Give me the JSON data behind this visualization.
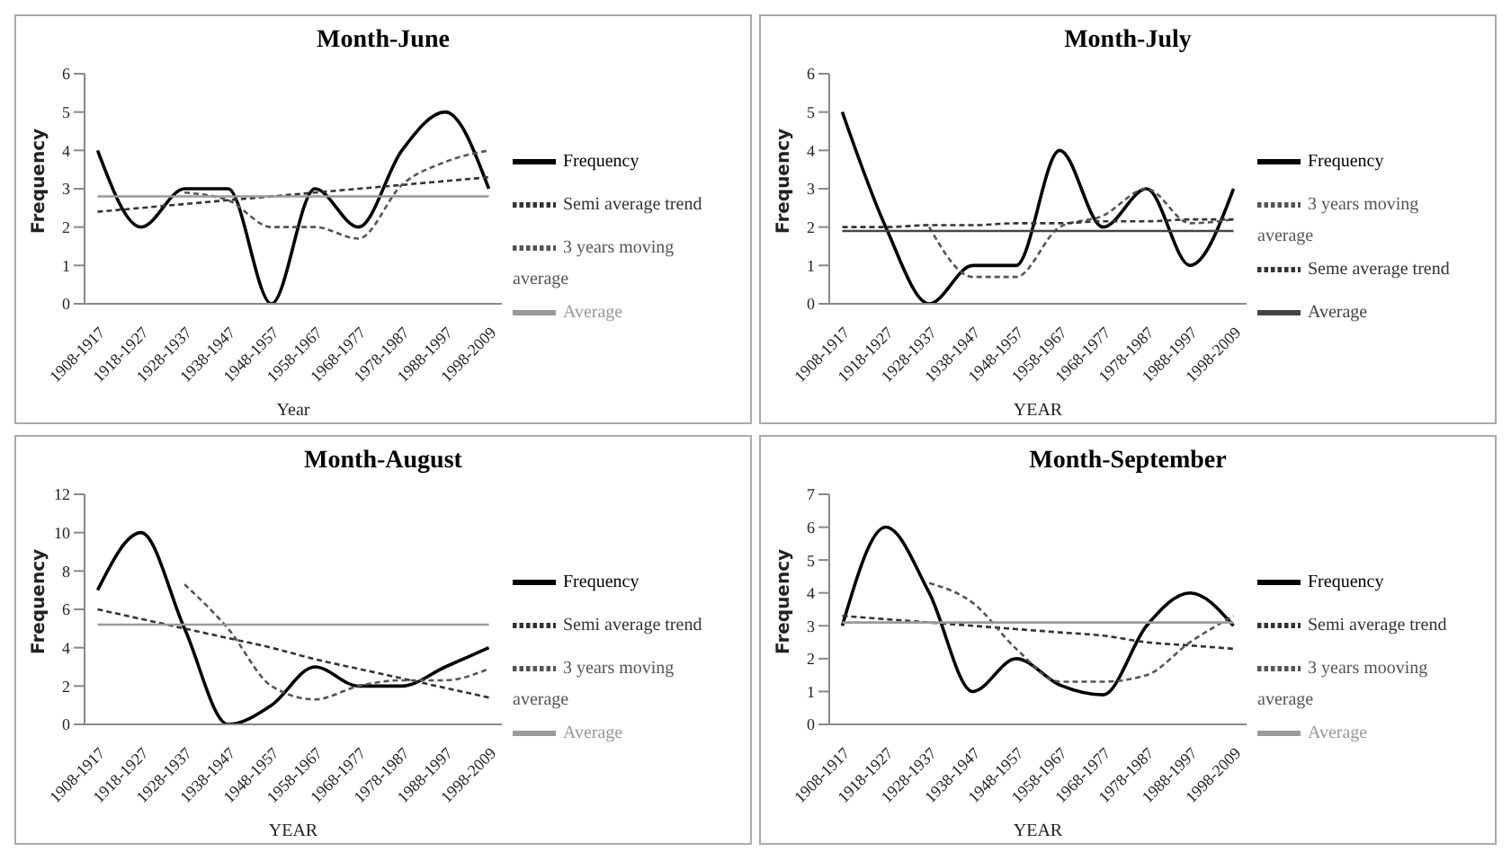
{
  "chart_data": [
    {
      "type": "line",
      "title": "Month-June",
      "xlabel": "Year",
      "ylabel": "Frequency",
      "categories": [
        "1908-1917",
        "1918-1927",
        "1928-1937",
        "1938-1947",
        "1948-1957",
        "1958-1967",
        "1968-1977",
        "1978-1987",
        "1988-1997",
        "1998-2009"
      ],
      "ylim": [
        0,
        6
      ],
      "yticks": [
        0,
        1,
        2,
        3,
        4,
        5,
        6
      ],
      "grid": false,
      "marker": "none",
      "legend": "right",
      "series": [
        {
          "name": "Frequency",
          "color": "#000000",
          "line_style": "solid",
          "values": [
            4,
            2,
            3,
            3,
            0,
            3,
            2,
            4,
            5,
            3
          ]
        },
        {
          "name": "Semi average trend",
          "color": "#333333",
          "line_style": "dashed",
          "values": [
            2.4,
            2.5,
            2.6,
            2.7,
            2.8,
            2.9,
            3.0,
            3.1,
            3.2,
            3.3
          ]
        },
        {
          "name": "3 years moving average",
          "color": "#555555",
          "line_style": "dashed",
          "values": [
            null,
            null,
            2.9,
            2.7,
            2.0,
            2.0,
            1.7,
            3.1,
            3.7,
            4.0
          ]
        },
        {
          "name": "Average",
          "color": "#999999",
          "line_style": "solid",
          "values": [
            2.8,
            2.8,
            2.8,
            2.8,
            2.8,
            2.8,
            2.8,
            2.8,
            2.8,
            2.8
          ]
        }
      ]
    },
    {
      "type": "line",
      "title": "Month-July",
      "xlabel": "YEAR",
      "ylabel": "Frequency",
      "categories": [
        "1908-1917",
        "1918-1927",
        "1928-1937",
        "1938-1947",
        "1948-1957",
        "1958-1967",
        "1968-1977",
        "1978-1987",
        "1988-1997",
        "1998-2009"
      ],
      "ylim": [
        0,
        6
      ],
      "yticks": [
        0,
        1,
        2,
        3,
        4,
        5,
        6
      ],
      "grid": false,
      "marker": "none",
      "legend": "right",
      "series": [
        {
          "name": "Frequency",
          "color": "#000000",
          "line_style": "solid",
          "values": [
            5,
            2,
            0,
            1,
            1,
            4,
            2,
            3,
            1,
            3
          ]
        },
        {
          "name": "3 years moving average",
          "color": "#555555",
          "line_style": "dashed",
          "values": [
            null,
            null,
            2.0,
            0.7,
            0.7,
            2.0,
            2.3,
            3.0,
            2.1,
            2.2
          ]
        },
        {
          "name": "Seme average trend",
          "color": "#333333",
          "line_style": "dashed",
          "values": [
            2.0,
            2.0,
            2.05,
            2.05,
            2.1,
            2.1,
            2.15,
            2.15,
            2.2,
            2.2
          ]
        },
        {
          "name": "Average",
          "color": "#444444",
          "line_style": "solid",
          "values": [
            1.9,
            1.9,
            1.9,
            1.9,
            1.9,
            1.9,
            1.9,
            1.9,
            1.9,
            1.9
          ]
        }
      ]
    },
    {
      "type": "line",
      "title": "Month-August",
      "xlabel": "YEAR",
      "ylabel": "Frequency",
      "categories": [
        "1908-1917",
        "1918-1927",
        "1928-1937",
        "1938-1947",
        "1948-1957",
        "1958-1967",
        "1968-1977",
        "1978-1987",
        "1988-1997",
        "1998-2009"
      ],
      "ylim": [
        0,
        12
      ],
      "yticks": [
        0,
        2,
        4,
        6,
        8,
        10,
        12
      ],
      "grid": false,
      "marker": "none",
      "legend": "right",
      "series": [
        {
          "name": "Frequency",
          "color": "#000000",
          "line_style": "solid",
          "values": [
            7,
            10,
            5,
            0,
            1,
            3,
            2,
            2,
            3,
            4
          ]
        },
        {
          "name": "Semi average trend",
          "color": "#333333",
          "line_style": "dashed",
          "values": [
            6.0,
            5.5,
            5.0,
            4.5,
            4.0,
            3.4,
            2.9,
            2.4,
            1.9,
            1.4
          ]
        },
        {
          "name": "3 years moving average",
          "color": "#555555",
          "line_style": "dashed",
          "values": [
            null,
            null,
            7.3,
            5.0,
            2.0,
            1.3,
            2.0,
            2.3,
            2.3,
            2.9
          ]
        },
        {
          "name": "Average",
          "color": "#999999",
          "line_style": "solid",
          "values": [
            5.2,
            5.2,
            5.2,
            5.2,
            5.2,
            5.2,
            5.2,
            5.2,
            5.2,
            5.2
          ]
        }
      ]
    },
    {
      "type": "line",
      "title": "Month-September",
      "xlabel": "YEAR",
      "ylabel": "Frequency",
      "categories": [
        "1908-1917",
        "1918-1927",
        "1928-1937",
        "1938-1947",
        "1948-1957",
        "1958-1967",
        "1968-1977",
        "1978-1987",
        "1988-1997",
        "1998-2009"
      ],
      "ylim": [
        0,
        7
      ],
      "yticks": [
        0,
        1,
        2,
        3,
        4,
        5,
        6,
        7
      ],
      "grid": false,
      "marker": "none",
      "legend": "right",
      "series": [
        {
          "name": "Frequency",
          "color": "#000000",
          "line_style": "solid",
          "values": [
            3,
            6,
            4,
            1,
            2,
            1.2,
            0.9,
            3,
            4,
            3
          ]
        },
        {
          "name": "Semi average trend",
          "color": "#333333",
          "line_style": "dashed",
          "values": [
            3.3,
            3.2,
            3.1,
            3.0,
            2.9,
            2.8,
            2.7,
            2.5,
            2.4,
            2.3
          ]
        },
        {
          "name": "3 years mooving average",
          "color": "#555555",
          "line_style": "dashed",
          "values": [
            null,
            null,
            4.3,
            3.7,
            2.3,
            1.3,
            1.3,
            1.5,
            2.5,
            3.3
          ]
        },
        {
          "name": "Average",
          "color": "#999999",
          "line_style": "solid",
          "values": [
            3.1,
            3.1,
            3.1,
            3.1,
            3.1,
            3.1,
            3.1,
            3.1,
            3.1,
            3.1
          ]
        }
      ]
    }
  ]
}
